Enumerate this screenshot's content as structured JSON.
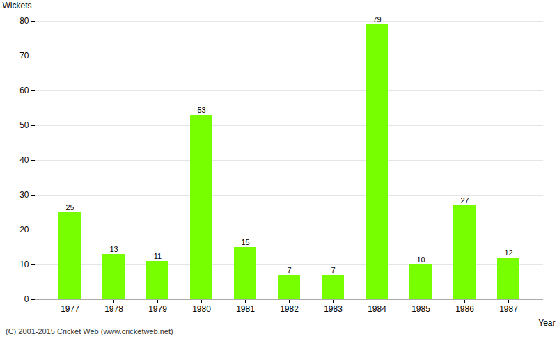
{
  "chart_data": {
    "type": "bar",
    "categories": [
      "1977",
      "1978",
      "1979",
      "1980",
      "1981",
      "1982",
      "1983",
      "1984",
      "1985",
      "1986",
      "1987"
    ],
    "values": [
      25,
      13,
      11,
      53,
      15,
      7,
      7,
      79,
      10,
      27,
      12
    ],
    "color": "#77ff00",
    "x_label": "Year",
    "y_label": "Wickets",
    "footer": "(C) 2001-2015 Cricket Web (www.cricketweb.net)",
    "ylim": [
      0,
      80
    ],
    "yticks": [
      0,
      10,
      20,
      30,
      40,
      50,
      60,
      70,
      80
    ],
    "grid": true,
    "data_labels": true
  }
}
